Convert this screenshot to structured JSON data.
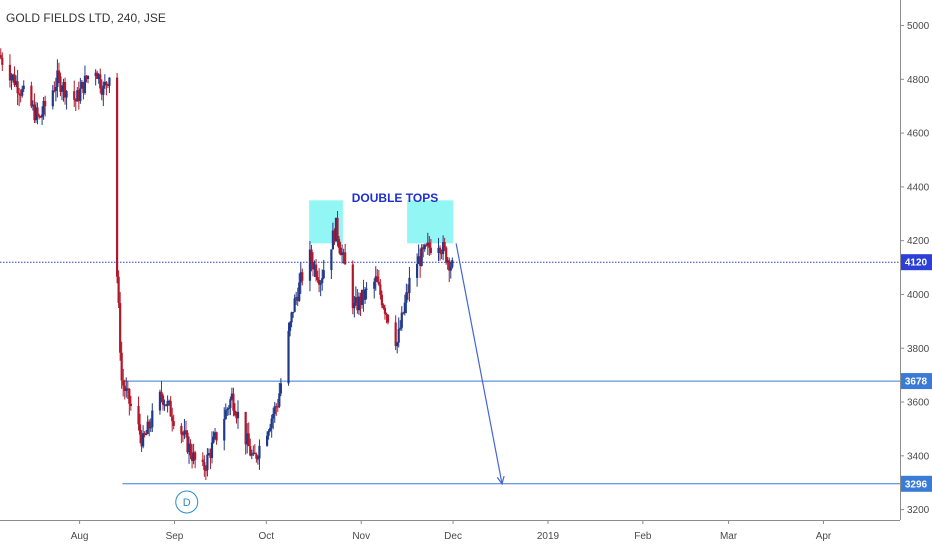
{
  "chart_data": {
    "type": "candlestick",
    "title": "GOLD FIELDS LTD, 240, JSE",
    "x_ticks": [
      "Aug",
      "Sep",
      "Oct",
      "Nov",
      "Dec",
      "2019",
      "Feb",
      "Mar",
      "Apr"
    ],
    "y_ticks": [
      3200,
      3400,
      3600,
      3800,
      4000,
      4200,
      4400,
      4600,
      4800,
      5000
    ],
    "ylim": [
      3180,
      5080
    ],
    "grid": false,
    "annotations": {
      "double_tops_label": "DOUBLE TOPS",
      "double_tops_boxes": [
        {
          "start": "2018-10-15",
          "end": "2018-10-26",
          "low": 4190,
          "high": 4350
        },
        {
          "start": "2018-11-16",
          "end": "2018-12-01",
          "low": 4190,
          "high": 4350
        }
      ],
      "current_price": {
        "value": 4120,
        "label": "4120"
      },
      "levels": [
        {
          "value": 3678,
          "label": "3678",
          "from": "2018-08-15"
        },
        {
          "value": 3296,
          "label": "3296",
          "from": "2018-08-15"
        }
      ],
      "projection_arrow": {
        "from_date": "2018-12-02",
        "from_value": 4190,
        "to_date": "2018-12-17",
        "to_value": 3296
      },
      "event_marker": {
        "label": "D",
        "date": "2018-09-05"
      }
    },
    "colors": {
      "up": "#1f3a8a",
      "down": "#b2182b",
      "level": "#3a7bd5",
      "price_line": "#2c3fd6",
      "box": "#7ef5f2",
      "arrow": "#4464d9"
    },
    "segments": [
      {
        "start": "2018-07-06",
        "end": "2018-07-19",
        "from": 4890,
        "to": 4650
      },
      {
        "start": "2018-07-19",
        "end": "2018-07-25",
        "from": 4650,
        "to": 4800
      },
      {
        "start": "2018-07-25",
        "end": "2018-07-31",
        "from": 4800,
        "to": 4720
      },
      {
        "start": "2018-07-31",
        "end": "2018-08-06",
        "from": 4720,
        "to": 4860
      },
      {
        "start": "2018-08-06",
        "end": "2018-08-09",
        "from": 4860,
        "to": 4760
      },
      {
        "start": "2018-08-09",
        "end": "2018-08-12",
        "from": 4760,
        "to": 4850
      },
      {
        "start": "2018-08-12",
        "end": "2018-08-13",
        "from": 4850,
        "to": 4200
      },
      {
        "start": "2018-08-13",
        "end": "2018-08-15",
        "from": 4200,
        "to": 3680
      },
      {
        "start": "2018-08-15",
        "end": "2018-08-22",
        "from": 3680,
        "to": 3450
      },
      {
        "start": "2018-08-22",
        "end": "2018-08-28",
        "from": 3450,
        "to": 3630
      },
      {
        "start": "2018-08-28",
        "end": "2018-09-04",
        "from": 3630,
        "to": 3480
      },
      {
        "start": "2018-09-04",
        "end": "2018-09-10",
        "from": 3480,
        "to": 3330
      },
      {
        "start": "2018-09-10",
        "end": "2018-09-20",
        "from": 3330,
        "to": 3620
      },
      {
        "start": "2018-09-20",
        "end": "2018-09-27",
        "from": 3620,
        "to": 3380
      },
      {
        "start": "2018-09-27",
        "end": "2018-10-05",
        "from": 3380,
        "to": 3600
      },
      {
        "start": "2018-10-05",
        "end": "2018-10-10",
        "from": 3600,
        "to": 3950
      },
      {
        "start": "2018-10-10",
        "end": "2018-10-15",
        "from": 3950,
        "to": 4150
      },
      {
        "start": "2018-10-15",
        "end": "2018-10-19",
        "from": 4150,
        "to": 4060
      },
      {
        "start": "2018-10-19",
        "end": "2018-10-24",
        "from": 4060,
        "to": 4250
      },
      {
        "start": "2018-10-24",
        "end": "2018-10-30",
        "from": 4250,
        "to": 3950
      },
      {
        "start": "2018-10-30",
        "end": "2018-11-06",
        "from": 3950,
        "to": 4050
      },
      {
        "start": "2018-11-06",
        "end": "2018-11-13",
        "from": 4050,
        "to": 3820
      },
      {
        "start": "2018-11-13",
        "end": "2018-11-18",
        "from": 3820,
        "to": 4100
      },
      {
        "start": "2018-11-18",
        "end": "2018-11-26",
        "from": 4100,
        "to": 4210
      },
      {
        "start": "2018-11-26",
        "end": "2018-12-02",
        "from": 4210,
        "to": 4080
      }
    ]
  }
}
